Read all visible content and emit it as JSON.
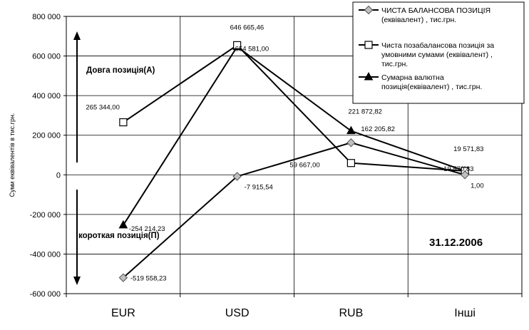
{
  "chart_data": {
    "type": "line",
    "categories": [
      "EUR",
      "USD",
      "RUB",
      "Інші"
    ],
    "ylabel": "Суми еквівалентів в тис.грн.",
    "ylim": [
      -600000,
      800000
    ],
    "y_ticks": [
      "800 000",
      "600 000",
      "400 000",
      "200 000",
      "0",
      "-200 000",
      "-400 000",
      "-600 000"
    ],
    "grid": true,
    "legend_position": "top-right",
    "series": [
      {
        "name": "ЧИСТА БАЛАНСОВА ПОЗИЦІЯ (еквівалент) , тис.грн.",
        "marker": "diamond",
        "color": "#000000",
        "values": [
          -519558.23,
          -7915.54,
          162205.82,
          1.0
        ],
        "labels": [
          "-519 558,23",
          "-7 915,54",
          "162 205,82",
          "1,00"
        ]
      },
      {
        "name": "Чиста позабалансова позиція за умовними сумами (еквівалент) , тис.грн.",
        "marker": "square",
        "color": "#000000",
        "values": [
          265344.0,
          654581.0,
          59667.0,
          19570.83
        ],
        "labels": [
          "265 344,00",
          "654 581,00",
          "59 667,00",
          "19 570,83"
        ]
      },
      {
        "name": "Сумарна валютна позиція(еквівалент) , тис.грн.",
        "marker": "triangle",
        "color": "#000000",
        "values": [
          -254214.23,
          646665.46,
          221872.82,
          19571.83
        ],
        "labels": [
          "-254 214,23",
          "646 665,46",
          "221 872,82",
          "19 571,83"
        ]
      }
    ],
    "annotations": {
      "long": "Довга позиція(А)",
      "short": "короткая позиція(П)",
      "date": "31.12.2006"
    }
  }
}
